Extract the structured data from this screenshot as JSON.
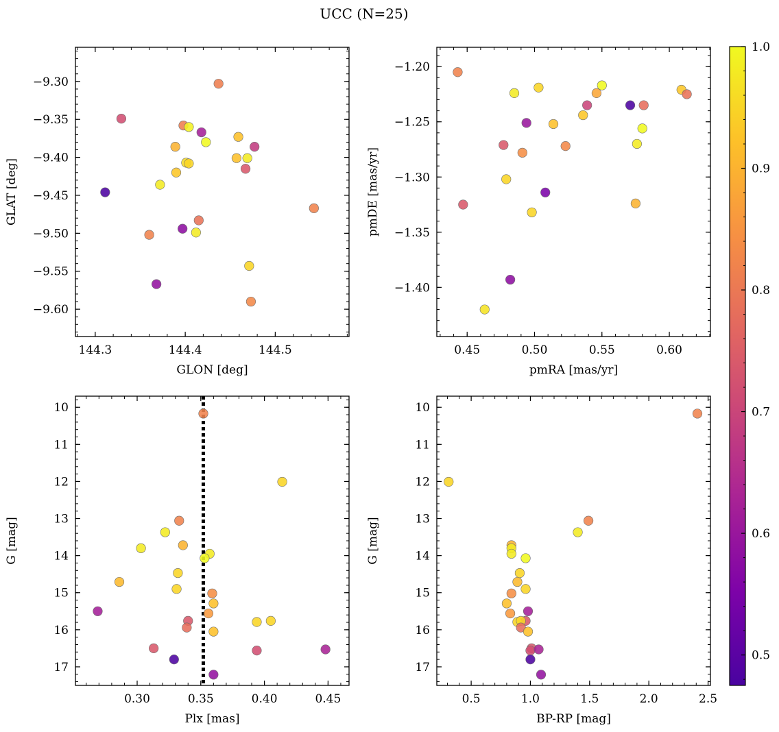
{
  "figure": {
    "suptitle": "UCC (N=25)"
  },
  "colormap": {
    "name": "plasma",
    "range": [
      0.475,
      1.0
    ],
    "ticks": [
      0.5,
      0.6,
      0.7,
      0.8,
      0.9,
      1.0
    ],
    "tick_labels": [
      "0.5",
      "0.6",
      "0.7",
      "0.8",
      "0.9",
      "1.0"
    ]
  },
  "chart_data": [
    {
      "type": "scatter",
      "xlabel": "GLON [deg]",
      "ylabel": "GLAT [deg]",
      "xlim": [
        144.278,
        144.582
      ],
      "ylim": [
        -9.636,
        -9.255
      ],
      "xticks": [
        144.3,
        144.4,
        144.5
      ],
      "xtick_labels": [
        "144.3",
        "144.4",
        "144.5"
      ],
      "yticks": [
        -9.3,
        -9.35,
        -9.4,
        -9.45,
        -9.5,
        -9.55,
        -9.6
      ],
      "ytick_labels": [
        "−9.30",
        "−9.35",
        "−9.40",
        "−9.45",
        "−9.50",
        "−9.55",
        "−9.60"
      ],
      "invert_y": false,
      "points": [
        {
          "x": 144.437,
          "y": -9.303,
          "c": 0.81
        },
        {
          "x": 144.329,
          "y": -9.349,
          "c": 0.72
        },
        {
          "x": 144.398,
          "y": -9.358,
          "c": 0.81
        },
        {
          "x": 144.404,
          "y": -9.36,
          "c": 0.99
        },
        {
          "x": 144.418,
          "y": -9.367,
          "c": 0.62
        },
        {
          "x": 144.459,
          "y": -9.373,
          "c": 0.92
        },
        {
          "x": 144.423,
          "y": -9.38,
          "c": 1.0
        },
        {
          "x": 144.389,
          "y": -9.386,
          "c": 0.9
        },
        {
          "x": 144.477,
          "y": -9.386,
          "c": 0.68
        },
        {
          "x": 144.457,
          "y": -9.401,
          "c": 0.92
        },
        {
          "x": 144.469,
          "y": -9.401,
          "c": 0.98
        },
        {
          "x": 144.401,
          "y": -9.407,
          "c": 0.96
        },
        {
          "x": 144.404,
          "y": -9.408,
          "c": 0.95
        },
        {
          "x": 144.467,
          "y": -9.415,
          "c": 0.74
        },
        {
          "x": 144.39,
          "y": -9.42,
          "c": 0.93
        },
        {
          "x": 144.372,
          "y": -9.436,
          "c": 0.98
        },
        {
          "x": 144.311,
          "y": -9.446,
          "c": 0.48
        },
        {
          "x": 144.543,
          "y": -9.467,
          "c": 0.82
        },
        {
          "x": 144.415,
          "y": -9.483,
          "c": 0.79
        },
        {
          "x": 144.397,
          "y": -9.494,
          "c": 0.58
        },
        {
          "x": 144.412,
          "y": -9.499,
          "c": 0.98
        },
        {
          "x": 144.36,
          "y": -9.502,
          "c": 0.82
        },
        {
          "x": 144.471,
          "y": -9.543,
          "c": 0.95
        },
        {
          "x": 144.368,
          "y": -9.567,
          "c": 0.59
        },
        {
          "x": 144.473,
          "y": -9.59,
          "c": 0.83
        }
      ]
    },
    {
      "type": "scatter",
      "xlabel": "pmRA [mas/yr]",
      "ylabel": "pmDE [mas/yr]",
      "xlim": [
        0.4275,
        0.6305
      ],
      "ylim": [
        -1.4445,
        -1.1825
      ],
      "xticks": [
        0.45,
        0.5,
        0.55,
        0.6
      ],
      "xtick_labels": [
        "0.45",
        "0.50",
        "0.55",
        "0.60"
      ],
      "yticks": [
        -1.2,
        -1.25,
        -1.3,
        -1.35,
        -1.4
      ],
      "ytick_labels": [
        "−1.20",
        "−1.25",
        "−1.30",
        "−1.35",
        "−1.40"
      ],
      "invert_y": false,
      "points": [
        {
          "x": 0.443,
          "y": -1.205,
          "c": 0.82
        },
        {
          "x": 0.55,
          "y": -1.217,
          "c": 1.0
        },
        {
          "x": 0.503,
          "y": -1.219,
          "c": 0.95
        },
        {
          "x": 0.609,
          "y": -1.221,
          "c": 0.93
        },
        {
          "x": 0.485,
          "y": -1.224,
          "c": 0.98
        },
        {
          "x": 0.546,
          "y": -1.224,
          "c": 0.88
        },
        {
          "x": 0.613,
          "y": -1.225,
          "c": 0.79
        },
        {
          "x": 0.539,
          "y": -1.235,
          "c": 0.7
        },
        {
          "x": 0.571,
          "y": -1.235,
          "c": 0.48
        },
        {
          "x": 0.581,
          "y": -1.235,
          "c": 0.78
        },
        {
          "x": 0.536,
          "y": -1.244,
          "c": 0.93
        },
        {
          "x": 0.494,
          "y": -1.251,
          "c": 0.6
        },
        {
          "x": 0.514,
          "y": -1.252,
          "c": 0.92
        },
        {
          "x": 0.58,
          "y": -1.256,
          "c": 1.0
        },
        {
          "x": 0.576,
          "y": -1.27,
          "c": 0.98
        },
        {
          "x": 0.477,
          "y": -1.271,
          "c": 0.74
        },
        {
          "x": 0.523,
          "y": -1.272,
          "c": 0.83
        },
        {
          "x": 0.491,
          "y": -1.278,
          "c": 0.84
        },
        {
          "x": 0.479,
          "y": -1.302,
          "c": 0.95
        },
        {
          "x": 0.508,
          "y": -1.314,
          "c": 0.55
        },
        {
          "x": 0.575,
          "y": -1.324,
          "c": 0.9
        },
        {
          "x": 0.447,
          "y": -1.325,
          "c": 0.74
        },
        {
          "x": 0.498,
          "y": -1.332,
          "c": 0.95
        },
        {
          "x": 0.482,
          "y": -1.393,
          "c": 0.58
        },
        {
          "x": 0.463,
          "y": -1.42,
          "c": 0.97
        }
      ]
    },
    {
      "type": "scatter",
      "xlabel": "Plx [mas]",
      "ylabel": "G [mag]",
      "xlim": [
        0.2515,
        0.4665
      ],
      "ylim": [
        17.5,
        9.7
      ],
      "xticks": [
        0.3,
        0.35,
        0.4,
        0.45
      ],
      "xtick_labels": [
        "0.30",
        "0.35",
        "0.40",
        "0.45"
      ],
      "yticks": [
        10,
        11,
        12,
        13,
        14,
        15,
        16,
        17
      ],
      "ytick_labels": [
        "10",
        "11",
        "12",
        "13",
        "14",
        "15",
        "16",
        "17"
      ],
      "invert_y": true,
      "vline": 0.352,
      "points": [
        {
          "x": 0.352,
          "y": 10.17,
          "c": 0.82
        },
        {
          "x": 0.414,
          "y": 12.01,
          "c": 0.95
        },
        {
          "x": 0.333,
          "y": 13.06,
          "c": 0.82
        },
        {
          "x": 0.322,
          "y": 13.37,
          "c": 0.98
        },
        {
          "x": 0.336,
          "y": 13.72,
          "c": 0.9
        },
        {
          "x": 0.303,
          "y": 13.8,
          "c": 0.98
        },
        {
          "x": 0.357,
          "y": 13.95,
          "c": 0.98
        },
        {
          "x": 0.353,
          "y": 14.07,
          "c": 1.0
        },
        {
          "x": 0.332,
          "y": 14.47,
          "c": 0.95
        },
        {
          "x": 0.286,
          "y": 14.71,
          "c": 0.91
        },
        {
          "x": 0.331,
          "y": 14.9,
          "c": 0.95
        },
        {
          "x": 0.359,
          "y": 15.02,
          "c": 0.84
        },
        {
          "x": 0.36,
          "y": 15.29,
          "c": 0.92
        },
        {
          "x": 0.356,
          "y": 15.56,
          "c": 0.86
        },
        {
          "x": 0.269,
          "y": 15.5,
          "c": 0.62
        },
        {
          "x": 0.34,
          "y": 15.76,
          "c": 0.74
        },
        {
          "x": 0.394,
          "y": 15.79,
          "c": 0.95
        },
        {
          "x": 0.405,
          "y": 15.76,
          "c": 0.95
        },
        {
          "x": 0.339,
          "y": 15.94,
          "c": 0.78
        },
        {
          "x": 0.36,
          "y": 16.05,
          "c": 0.92
        },
        {
          "x": 0.313,
          "y": 16.5,
          "c": 0.74
        },
        {
          "x": 0.394,
          "y": 16.56,
          "c": 0.72
        },
        {
          "x": 0.448,
          "y": 16.53,
          "c": 0.63
        },
        {
          "x": 0.329,
          "y": 16.8,
          "c": 0.48
        },
        {
          "x": 0.36,
          "y": 17.21,
          "c": 0.59
        }
      ]
    },
    {
      "type": "scatter",
      "xlabel": "BP-RP [mag]",
      "ylabel": "G [mag]",
      "xlim": [
        0.21,
        2.52
      ],
      "ylim": [
        17.5,
        9.7
      ],
      "xticks": [
        0.5,
        1.0,
        1.5,
        2.0,
        2.5
      ],
      "xtick_labels": [
        "0.5",
        "1.0",
        "1.5",
        "2.0",
        "2.5"
      ],
      "yticks": [
        10,
        11,
        12,
        13,
        14,
        15,
        16,
        17
      ],
      "ytick_labels": [
        "10",
        "11",
        "12",
        "13",
        "14",
        "15",
        "16",
        "17"
      ],
      "invert_y": true,
      "points": [
        {
          "x": 2.41,
          "y": 10.17,
          "c": 0.82
        },
        {
          "x": 0.31,
          "y": 12.01,
          "c": 0.95
        },
        {
          "x": 1.49,
          "y": 13.06,
          "c": 0.82
        },
        {
          "x": 1.4,
          "y": 13.37,
          "c": 0.98
        },
        {
          "x": 0.84,
          "y": 13.72,
          "c": 0.9
        },
        {
          "x": 0.84,
          "y": 13.8,
          "c": 0.98
        },
        {
          "x": 0.84,
          "y": 13.95,
          "c": 0.98
        },
        {
          "x": 0.96,
          "y": 14.07,
          "c": 1.0
        },
        {
          "x": 0.91,
          "y": 14.47,
          "c": 0.95
        },
        {
          "x": 0.89,
          "y": 14.71,
          "c": 0.91
        },
        {
          "x": 0.96,
          "y": 14.9,
          "c": 0.95
        },
        {
          "x": 0.84,
          "y": 15.02,
          "c": 0.84
        },
        {
          "x": 0.8,
          "y": 15.29,
          "c": 0.92
        },
        {
          "x": 0.83,
          "y": 15.56,
          "c": 0.86
        },
        {
          "x": 0.98,
          "y": 15.5,
          "c": 0.62
        },
        {
          "x": 0.96,
          "y": 15.76,
          "c": 0.74
        },
        {
          "x": 0.89,
          "y": 15.79,
          "c": 0.95
        },
        {
          "x": 0.92,
          "y": 15.76,
          "c": 0.95
        },
        {
          "x": 0.92,
          "y": 15.94,
          "c": 0.78
        },
        {
          "x": 0.98,
          "y": 16.05,
          "c": 0.92
        },
        {
          "x": 1.01,
          "y": 16.5,
          "c": 0.74
        },
        {
          "x": 1.0,
          "y": 16.56,
          "c": 0.72
        },
        {
          "x": 1.07,
          "y": 16.53,
          "c": 0.63
        },
        {
          "x": 1.0,
          "y": 16.8,
          "c": 0.48
        },
        {
          "x": 1.09,
          "y": 17.21,
          "c": 0.59
        }
      ]
    }
  ]
}
